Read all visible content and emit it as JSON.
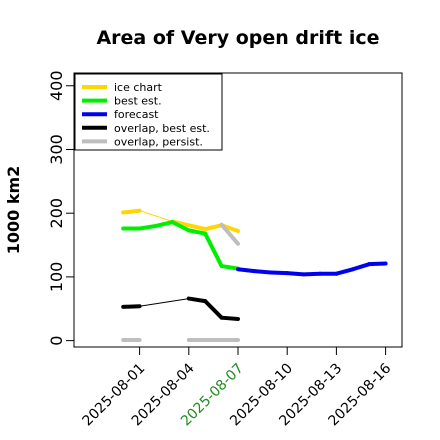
{
  "chart_data": {
    "type": "line",
    "title": "Area of Very open drift ice",
    "ylabel": "1000 km2",
    "ylim": [
      -10,
      420
    ],
    "yticks": [
      0,
      100,
      200,
      300,
      400
    ],
    "xlim": [
      "2025-07-28",
      "2025-08-17"
    ],
    "xticks": [
      "2025-08-01",
      "2025-08-04",
      "2025-08-07",
      "2025-08-10",
      "2025-08-13",
      "2025-08-16"
    ],
    "highlight_tick": "2025-08-07",
    "highlight_color": "#228B22",
    "legend_position": "top-left",
    "series": [
      {
        "name": "ice chart",
        "color": "#FFD700",
        "style": "thick",
        "points": [
          [
            "2025-07-31",
            201
          ],
          [
            "2025-08-01",
            204
          ],
          [
            "2025-08-03",
            187
          ],
          [
            "2025-08-04",
            181
          ],
          [
            "2025-08-05",
            175
          ],
          [
            "2025-08-06",
            181
          ],
          [
            "2025-08-07",
            172
          ]
        ],
        "breaks_after": [
          1
        ]
      },
      {
        "name": "best est.",
        "color": "#00EE00",
        "style": "thick",
        "points": [
          [
            "2025-07-31",
            176
          ],
          [
            "2025-08-01",
            176
          ],
          [
            "2025-08-02",
            180
          ],
          [
            "2025-08-03",
            186
          ],
          [
            "2025-08-04",
            173
          ],
          [
            "2025-08-05",
            168
          ],
          [
            "2025-08-06",
            117
          ],
          [
            "2025-08-07",
            113
          ]
        ],
        "breaks_after": []
      },
      {
        "name": "forecast",
        "color": "#0000EE",
        "style": "thick",
        "points": [
          [
            "2025-08-07",
            112
          ],
          [
            "2025-08-08",
            109
          ],
          [
            "2025-08-09",
            107
          ],
          [
            "2025-08-10",
            106
          ],
          [
            "2025-08-11",
            104
          ],
          [
            "2025-08-12",
            105
          ],
          [
            "2025-08-13",
            105
          ],
          [
            "2025-08-14",
            112
          ],
          [
            "2025-08-15",
            120
          ],
          [
            "2025-08-16",
            121
          ]
        ],
        "breaks_after": []
      },
      {
        "name": "overlap, best est.",
        "color": "#000000",
        "style": "thick",
        "points": [
          [
            "2025-07-31",
            53
          ],
          [
            "2025-08-01",
            54
          ],
          [
            "2025-08-04",
            66
          ],
          [
            "2025-08-05",
            62
          ],
          [
            "2025-08-06",
            36
          ],
          [
            "2025-08-07",
            34
          ]
        ],
        "breaks_after": [
          1
        ]
      },
      {
        "name": "overlap, persist.",
        "color": "#BEBEBE",
        "style": "thick",
        "points": [
          [
            "2025-07-31",
            1
          ],
          [
            "2025-08-01",
            1
          ]
        ],
        "breaks_after": []
      },
      {
        "name": "",
        "color": "#BEBEBE",
        "style": "thick",
        "points": [
          [
            "2025-08-04",
            1
          ],
          [
            "2025-08-07",
            1
          ]
        ],
        "breaks_after": []
      },
      {
        "name": "",
        "color": "#BEBEBE",
        "style": "thick",
        "points": [
          [
            "2025-08-06",
            182
          ],
          [
            "2025-08-07",
            152
          ]
        ],
        "breaks_after": []
      }
    ]
  }
}
